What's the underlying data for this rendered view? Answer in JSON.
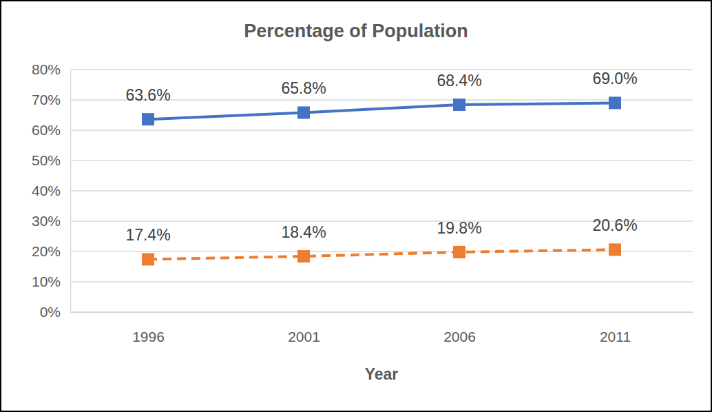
{
  "chart_data": {
    "type": "line",
    "title": "Percentage of Population",
    "x_label": "Year",
    "categories": [
      "1996",
      "2001",
      "2006",
      "2011"
    ],
    "series": [
      {
        "color": "#4472c4",
        "line_style": "solid",
        "marker": "square",
        "values": [
          63.6,
          65.8,
          68.4,
          69.0
        ],
        "value_labels": [
          "63.6%",
          "65.8%",
          "68.4%",
          "69.0%"
        ]
      },
      {
        "color": "#ed7d31",
        "line_style": "dashed",
        "marker": "square",
        "values": [
          17.4,
          18.4,
          19.8,
          20.6
        ],
        "value_labels": [
          "17.4%",
          "18.4%",
          "19.8%",
          "20.6%"
        ]
      }
    ],
    "ylim": [
      0,
      80
    ],
    "yticks": [
      {
        "value": 0,
        "label": "0%"
      },
      {
        "value": 10,
        "label": "10%"
      },
      {
        "value": 20,
        "label": "20%"
      },
      {
        "value": 30,
        "label": "30%"
      },
      {
        "value": 40,
        "label": "40%"
      },
      {
        "value": 50,
        "label": "50%"
      },
      {
        "value": 60,
        "label": "60%"
      },
      {
        "value": 70,
        "label": "70%"
      },
      {
        "value": 80,
        "label": "80%"
      }
    ],
    "grid": true,
    "data_labels": true
  }
}
